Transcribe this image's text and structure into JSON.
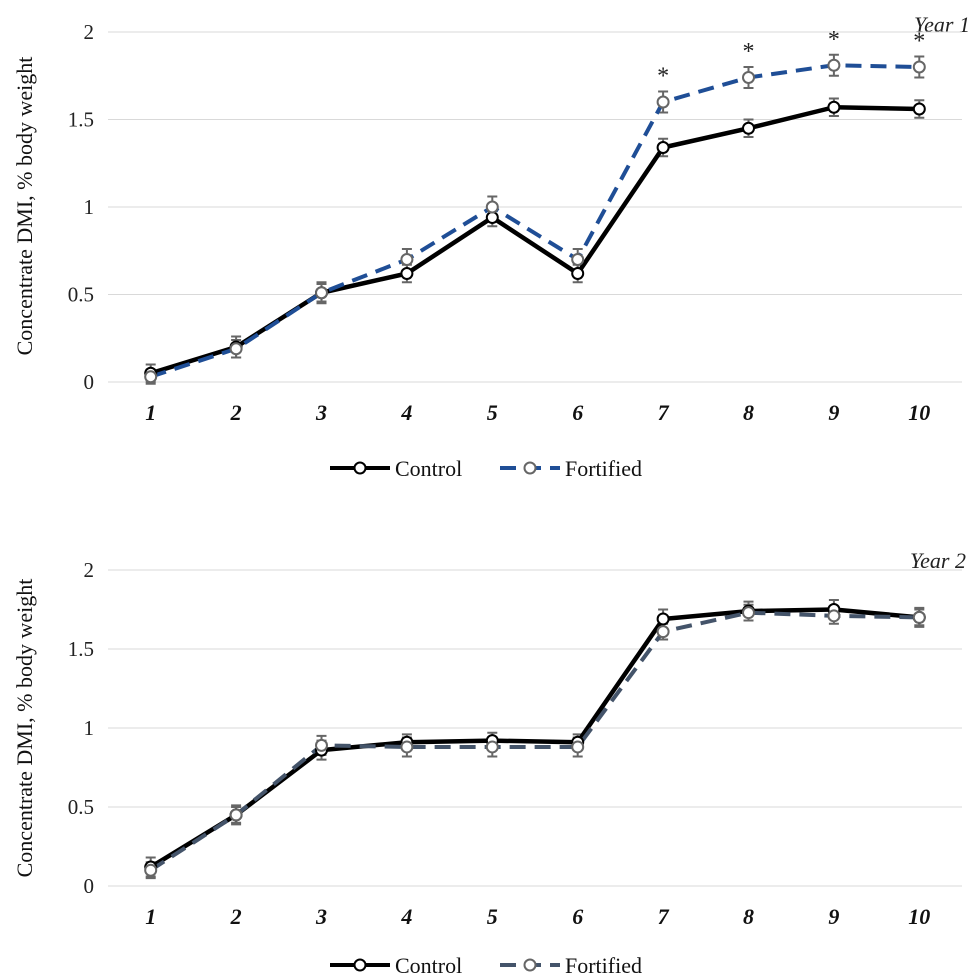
{
  "chart_data": [
    {
      "type": "line",
      "panel_label": "Year 1",
      "ylabel": "Concentrate DMI, % body weight",
      "xlabel": "",
      "x": [
        "1",
        "2",
        "3",
        "4",
        "5",
        "6",
        "7",
        "8",
        "9",
        "10"
      ],
      "ylim": [
        0,
        2
      ],
      "yticks": [
        "0",
        "0.5",
        "1",
        "1.5",
        "2"
      ],
      "grid": true,
      "legend_position": "bottom",
      "series": [
        {
          "name": "Control",
          "color": "#000000",
          "style": "solid",
          "values": [
            0.05,
            0.2,
            0.51,
            0.62,
            0.94,
            0.62,
            1.34,
            1.45,
            1.57,
            1.56
          ],
          "errors": [
            0.05,
            0.06,
            0.06,
            0.05,
            0.05,
            0.05,
            0.05,
            0.05,
            0.05,
            0.05
          ]
        },
        {
          "name": "Fortified",
          "color": "#1f4e96",
          "style": "dashed",
          "values": [
            0.03,
            0.19,
            0.51,
            0.7,
            1.0,
            0.7,
            1.6,
            1.74,
            1.81,
            1.8
          ],
          "errors": [
            0.04,
            0.05,
            0.05,
            0.06,
            0.06,
            0.06,
            0.06,
            0.06,
            0.06,
            0.06
          ]
        }
      ],
      "significance_marks": [
        {
          "x": "7",
          "label": "*"
        },
        {
          "x": "8",
          "label": "*"
        },
        {
          "x": "9",
          "label": "*"
        },
        {
          "x": "10",
          "label": "*"
        }
      ]
    },
    {
      "type": "line",
      "panel_label": "Year 2",
      "ylabel": "Concentrate DMI, % body weight",
      "xlabel": "",
      "x": [
        "1",
        "2",
        "3",
        "4",
        "5",
        "6",
        "7",
        "8",
        "9",
        "10"
      ],
      "ylim": [
        0,
        2
      ],
      "yticks": [
        "0",
        "0.5",
        "1",
        "1.5",
        "2"
      ],
      "grid": true,
      "legend_position": "bottom",
      "series": [
        {
          "name": "Control",
          "color": "#000000",
          "style": "solid",
          "values": [
            0.12,
            0.45,
            0.86,
            0.91,
            0.92,
            0.91,
            1.69,
            1.74,
            1.75,
            1.7
          ],
          "errors": [
            0.06,
            0.06,
            0.06,
            0.05,
            0.05,
            0.05,
            0.06,
            0.06,
            0.06,
            0.06
          ]
        },
        {
          "name": "Fortified",
          "color": "#44546a",
          "style": "dashed",
          "values": [
            0.1,
            0.45,
            0.89,
            0.88,
            0.88,
            0.88,
            1.61,
            1.73,
            1.71,
            1.7
          ],
          "errors": [
            0.05,
            0.05,
            0.06,
            0.06,
            0.06,
            0.06,
            0.05,
            0.05,
            0.05,
            0.05
          ]
        }
      ],
      "significance_marks": []
    }
  ]
}
